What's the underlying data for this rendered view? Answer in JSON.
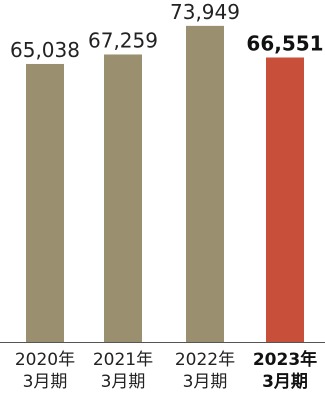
{
  "chart_data": {
    "type": "bar",
    "categories": [
      [
        "2020年",
        "3月期"
      ],
      [
        "2021年",
        "3月期"
      ],
      [
        "2022年",
        "3月期"
      ],
      [
        "2023年",
        "3月期"
      ]
    ],
    "values": [
      65038,
      67259,
      73949,
      66551
    ],
    "value_labels": [
      "65,038",
      "67,259",
      "73,949",
      "66,551"
    ],
    "highlight_index": 3,
    "colors": {
      "bar": "#9a8f6f",
      "highlight": "#c8503a",
      "axis": "#555555"
    },
    "ylim": [
      0,
      80000
    ],
    "grid": false,
    "legend": "none",
    "title": "",
    "xlabel": "",
    "ylabel": ""
  }
}
